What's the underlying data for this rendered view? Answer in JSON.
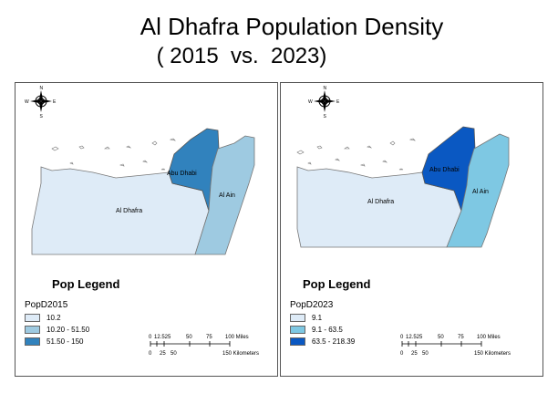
{
  "title_line1": "Al Dhafra Population Density",
  "title_line2": "( 2015  vs.  2023)",
  "colors": {
    "light": "#deebf7",
    "medium": "#9ecae1",
    "dark_2015": "#3182bd",
    "dark_2023": "#0a58c2",
    "medium_2023": "#7ec8e3"
  },
  "maps": [
    {
      "region_labels": {
        "west": "Al Dhafra",
        "north": "Abu Dhabi",
        "east": "Al Ain"
      },
      "legend_title": "Pop Legend",
      "field": "PopD2015",
      "classes": [
        {
          "label": "10.2",
          "color": "#deebf7"
        },
        {
          "label": "10.20 - 51.50",
          "color": "#9ecae1"
        },
        {
          "label": "51.50 - 150",
          "color": "#3182bd"
        }
      ],
      "scale_miles": [
        "0",
        "12.525",
        "50",
        "75",
        "100 Miles"
      ],
      "scale_km": [
        "0",
        "25",
        "50",
        "150 Kilometers"
      ]
    },
    {
      "region_labels": {
        "west": "Al Dhafra",
        "north": "Abu Dhabi",
        "east": "Al Ain"
      },
      "legend_title": "Pop Legend",
      "field": "PopD2023",
      "classes": [
        {
          "label": "9.1",
          "color": "#deebf7"
        },
        {
          "label": "9.1 - 63.5",
          "color": "#7ec8e3"
        },
        {
          "label": "63.5 - 218.39",
          "color": "#0a58c2"
        }
      ],
      "scale_miles": [
        "0",
        "12.525",
        "50",
        "75",
        "100 Miles"
      ],
      "scale_km": [
        "0",
        "25",
        "50",
        "150 Kilometers"
      ]
    }
  ]
}
